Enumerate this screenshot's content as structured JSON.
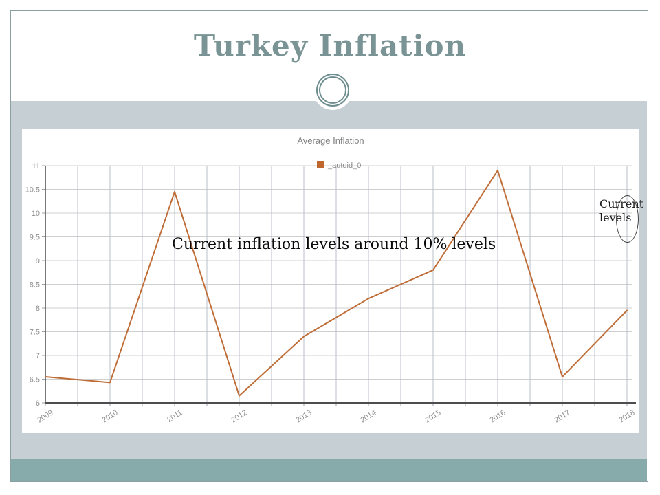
{
  "slide": {
    "title": "Turkey Inflation"
  },
  "chart_data": {
    "type": "line",
    "title": "Average Inflation",
    "x": [
      2009,
      2010,
      2011,
      2012,
      2013,
      2014,
      2015,
      2016,
      2017,
      2018
    ],
    "series": [
      {
        "name": "_autoid_0",
        "values": [
          6.55,
          6.43,
          10.45,
          6.15,
          7.4,
          8.2,
          8.8,
          10.9,
          6.55,
          7.95
        ]
      }
    ],
    "ylim": [
      6,
      11
    ],
    "ytick_step": 0.5,
    "grid": true,
    "legend_position": "top",
    "xlabel": "",
    "ylabel": ""
  },
  "annotations": {
    "note": "Current inflation levels around 10% levels",
    "callout": {
      "line1": "Current",
      "line2": "levels"
    }
  },
  "colors": {
    "title_text": "#7a9495",
    "accent_ring": "#6e8d8e",
    "divider": "#6a8889",
    "frame_border": "#8ba0a1",
    "band_light": "#c6cfd3",
    "band_dark": "#87aaab",
    "series_line": "#bf6c37",
    "legend_swatch": "#bf662c",
    "legend_text": "#8a8a8a",
    "chart_title_text": "#808080",
    "axis": "#4d4d4d",
    "grid_horizontal": "#cfcfcf",
    "grid_vertical": "#b9c0c9",
    "tick": "#9aa0a6",
    "tick_label": "#8f8f8f"
  }
}
